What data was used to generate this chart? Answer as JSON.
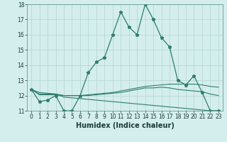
{
  "title": "",
  "xlabel": "Humidex (Indice chaleur)",
  "x": [
    0,
    1,
    2,
    3,
    4,
    5,
    6,
    7,
    8,
    9,
    10,
    11,
    12,
    13,
    14,
    15,
    16,
    17,
    18,
    19,
    20,
    21,
    22,
    23
  ],
  "main_line": [
    12.4,
    11.6,
    11.7,
    12.0,
    11.0,
    11.0,
    12.0,
    13.5,
    14.2,
    14.5,
    16.0,
    17.5,
    16.5,
    16.0,
    18.0,
    17.0,
    15.8,
    15.2,
    13.0,
    12.7,
    13.3,
    12.2,
    11.0,
    11.0
  ],
  "line2": [
    12.4,
    12.05,
    12.05,
    12.05,
    12.0,
    12.0,
    12.0,
    12.05,
    12.1,
    12.15,
    12.2,
    12.3,
    12.4,
    12.5,
    12.6,
    12.65,
    12.7,
    12.75,
    12.75,
    12.75,
    12.75,
    12.7,
    12.6,
    12.55
  ],
  "line3": [
    12.4,
    12.1,
    12.1,
    12.1,
    12.0,
    12.0,
    12.0,
    12.0,
    12.05,
    12.1,
    12.15,
    12.2,
    12.3,
    12.4,
    12.5,
    12.5,
    12.55,
    12.5,
    12.4,
    12.35,
    12.3,
    12.25,
    12.1,
    12.0
  ],
  "line4": [
    12.4,
    12.2,
    12.15,
    12.1,
    11.9,
    11.85,
    11.8,
    11.75,
    11.7,
    11.65,
    11.6,
    11.55,
    11.5,
    11.45,
    11.4,
    11.35,
    11.3,
    11.25,
    11.2,
    11.15,
    11.1,
    11.05,
    11.0,
    11.0
  ],
  "line_color": "#2e7d6e",
  "bg_color": "#d4eeed",
  "grid_color": "#b8d8d4",
  "ylim_min": 11,
  "ylim_max": 18,
  "yticks": [
    11,
    12,
    13,
    14,
    15,
    16,
    17,
    18
  ],
  "xticks": [
    0,
    1,
    2,
    3,
    4,
    5,
    6,
    7,
    8,
    9,
    10,
    11,
    12,
    13,
    14,
    15,
    16,
    17,
    18,
    19,
    20,
    21,
    22,
    23
  ],
  "tick_fontsize": 5.5,
  "xlabel_fontsize": 7,
  "marker": "*",
  "markersize": 3.5,
  "linewidth_main": 0.9,
  "linewidth_extra": 0.8
}
